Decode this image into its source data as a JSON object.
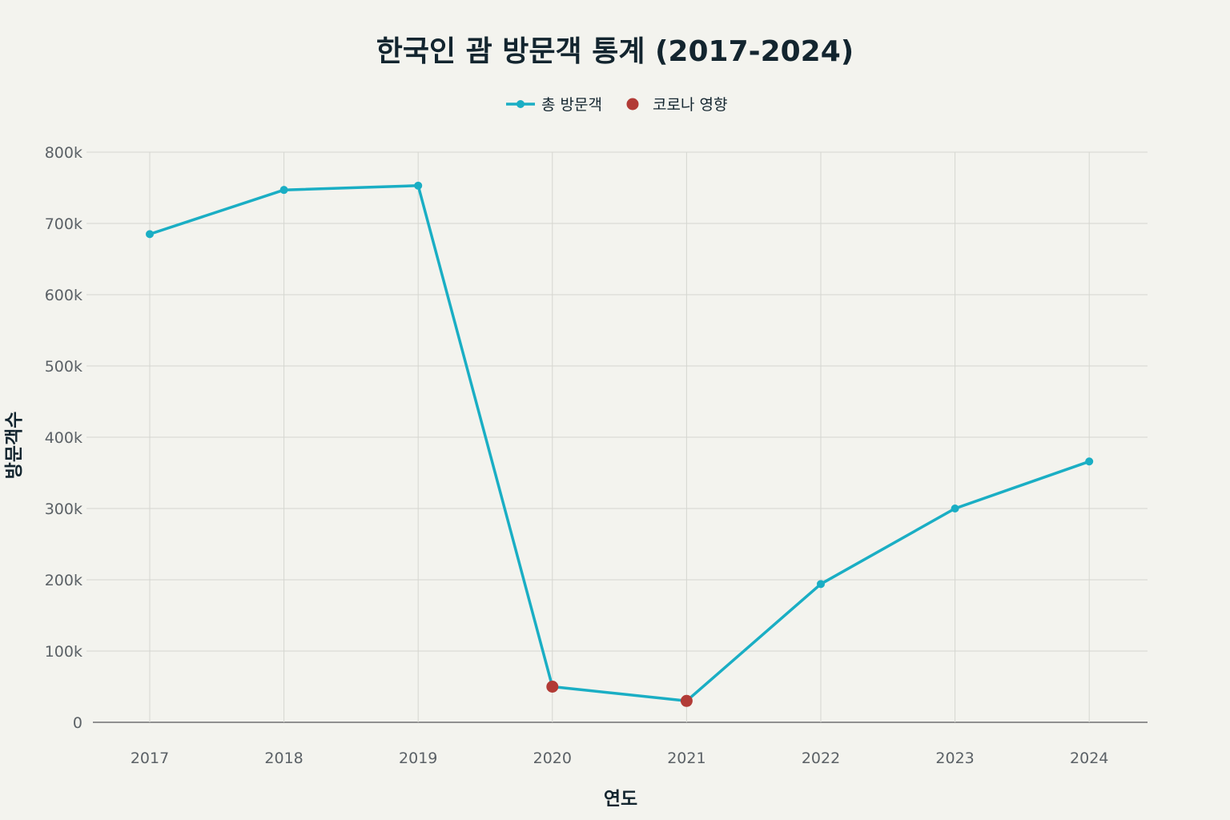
{
  "chart_data": {
    "type": "line",
    "title": "한국인 괌 방문객 통계 (2017-2024)",
    "xlabel": "연도",
    "ylabel": "방문객수",
    "categories": [
      "2017",
      "2018",
      "2019",
      "2020",
      "2021",
      "2022",
      "2023",
      "2024"
    ],
    "ylim": [
      0,
      800000
    ],
    "yticks": [
      0,
      100000,
      200000,
      300000,
      400000,
      500000,
      600000,
      700000,
      800000
    ],
    "ytick_labels": [
      "0",
      "100k",
      "200k",
      "300k",
      "400k",
      "500k",
      "600k",
      "700k",
      "800k"
    ],
    "grid": true,
    "legend_position": "top-center",
    "series": [
      {
        "name": "총 방문객",
        "color": "#1aaec4",
        "values": [
          685000,
          747000,
          753000,
          50000,
          30000,
          194000,
          300000,
          366000
        ]
      }
    ],
    "highlight": {
      "name": "코로나 영향",
      "color": "#b23b36",
      "categories": [
        "2020",
        "2021"
      ],
      "values": [
        50000,
        30000
      ]
    }
  }
}
